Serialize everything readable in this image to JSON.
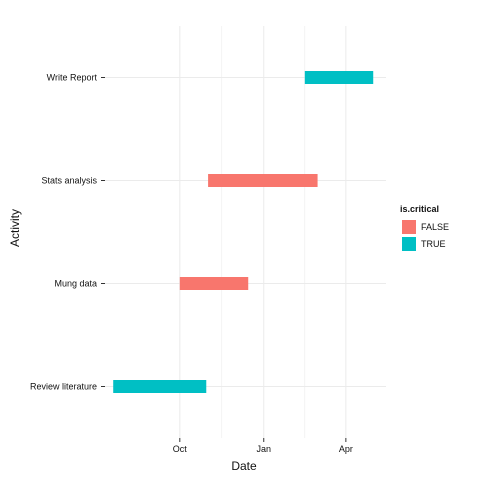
{
  "chart_data": {
    "type": "bar",
    "orientation": "horizontal-range",
    "xlabel": "Date",
    "ylabel": "Activity",
    "x_ticks": [
      {
        "label": "Oct",
        "date": "2014-10-01"
      },
      {
        "label": "Jan",
        "date": "2015-01-01"
      },
      {
        "label": "Apr",
        "date": "2015-04-01"
      }
    ],
    "xlim": [
      "2014-07-11",
      "2015-05-15"
    ],
    "categories": [
      "Write Report",
      "Stats analysis",
      "Mung data",
      "Review literature"
    ],
    "tasks": [
      {
        "activity": "Write Report",
        "start": "2015-02-15",
        "end": "2015-05-01",
        "is_critical": "TRUE"
      },
      {
        "activity": "Stats analysis",
        "start": "2014-11-01",
        "end": "2015-03-01",
        "is_critical": "FALSE"
      },
      {
        "activity": "Mung data",
        "start": "2014-10-01",
        "end": "2014-12-15",
        "is_critical": "FALSE"
      },
      {
        "activity": "Review literature",
        "start": "2014-07-20",
        "end": "2014-10-30",
        "is_critical": "TRUE"
      }
    ],
    "legend": {
      "title": "is.critical",
      "position": "right",
      "items": [
        {
          "label": "FALSE",
          "color": "#F8766D"
        },
        {
          "label": "TRUE",
          "color": "#00BFC4"
        }
      ]
    },
    "grid": true,
    "colors": {
      "FALSE": "#F8766D",
      "TRUE": "#00BFC4",
      "grid": "#EBEBEB",
      "tick": "#333333"
    }
  }
}
